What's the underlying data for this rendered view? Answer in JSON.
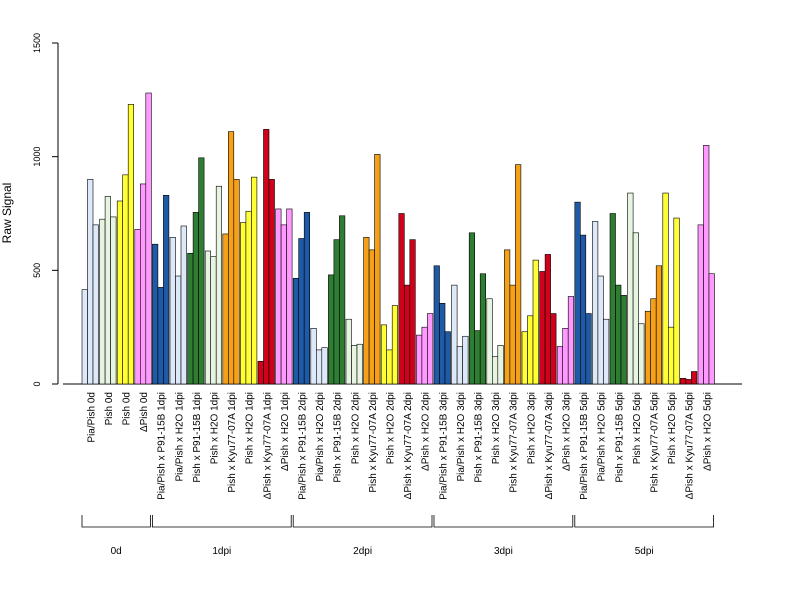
{
  "chart_data": {
    "type": "bar",
    "title": "",
    "xlabel": "",
    "ylabel": "Raw Signal",
    "ylim": [
      0,
      1500
    ],
    "yticks": [
      0,
      500,
      1000,
      1500
    ],
    "grid": false,
    "categories": [
      "Pia/Pish 0d",
      "Pish 0d",
      "Pish 0d",
      "ΔPish 0d",
      "Pia/Pish x P91-15B 1dpi",
      "Pia/Pish x H2O 1dpi",
      "Pish x P91-15B 1dpi",
      "Pish x H2O 1dpi",
      "Pish x Kyu77-07A 1dpi",
      "Pish x H2O 1dpi",
      "ΔPish x Kyu77-07A 1dpi",
      "ΔPish x H2O 1dpi",
      "Pia/Pish x P91-15B 2dpi",
      "Pia/Pish x H2O 2dpi",
      "Pish x P91-15B 2dpi",
      "Pish x H2O 2dpi",
      "Pish x Kyu77-07A 2dpi",
      "Pish x H2O 2dpi",
      "ΔPish x Kyu77-07A 2dpi",
      "ΔPish x H2O 2dpi",
      "Pia/Pish x P91-15B 3dpi",
      "Pia/Pish x H2O 3dpi",
      "Pish x P91-15B 3dpi",
      "Pish x H2O 3dpi",
      "Pish x Kyu77-07A 3dpi",
      "Pish x H2O 3dpi",
      "ΔPish x Kyu77-07A 3dpi",
      "ΔPish x H2O 3dpi",
      "Pia/Pish x P91-15B 5dpi",
      "Pia/Pish x H2O 5dpi",
      "Pish x P91-15B 5dpi",
      "Pish x H2O 5dpi",
      "Pish x Kyu77-07A 5dpi",
      "Pish x H2O 5dpi",
      "ΔPish x Kyu77-07A 5dpi",
      "ΔPish x H2O 5dpi"
    ],
    "groups": [
      {
        "label": "0d",
        "start": 0,
        "end": 3
      },
      {
        "label": "1dpi",
        "start": 4,
        "end": 11
      },
      {
        "label": "2dpi",
        "start": 12,
        "end": 19
      },
      {
        "label": "3dpi",
        "start": 20,
        "end": 27
      },
      {
        "label": "5dpi",
        "start": 28,
        "end": 35
      }
    ],
    "series_colors": [
      "#dde9f8",
      "#1f5aa6",
      "#2e7d32",
      "#e6f4e1",
      "#f5a019",
      "#ffff33",
      "#d0021b",
      "#ff99ff"
    ],
    "bars": [
      {
        "color": "#dde9f8",
        "values": [
          415,
          900,
          700
        ]
      },
      {
        "color": "#e6f4e1",
        "values": [
          725,
          825,
          735
        ]
      },
      {
        "color": "#ffff33",
        "values": [
          805,
          920,
          1230
        ]
      },
      {
        "color": "#ff99ff",
        "values": [
          680,
          880,
          1280
        ]
      },
      {
        "color": "#1f5aa6",
        "values": [
          615,
          425,
          830
        ]
      },
      {
        "color": "#dde9f8",
        "values": [
          645,
          475,
          695
        ]
      },
      {
        "color": "#2e7d32",
        "values": [
          575,
          755,
          995
        ]
      },
      {
        "color": "#e6f4e1",
        "values": [
          585,
          560,
          870
        ]
      },
      {
        "color": "#f5a019",
        "values": [
          660,
          1110,
          900
        ]
      },
      {
        "color": "#ffff33",
        "values": [
          710,
          760,
          910
        ]
      },
      {
        "color": "#d0021b",
        "values": [
          100,
          1120,
          900
        ]
      },
      {
        "color": "#ff99ff",
        "values": [
          770,
          700,
          770
        ]
      },
      {
        "color": "#1f5aa6",
        "values": [
          465,
          640,
          755
        ]
      },
      {
        "color": "#dde9f8",
        "values": [
          245,
          150,
          160
        ]
      },
      {
        "color": "#2e7d32",
        "values": [
          480,
          635,
          740
        ]
      },
      {
        "color": "#e6f4e1",
        "values": [
          285,
          170,
          175
        ]
      },
      {
        "color": "#f5a019",
        "values": [
          645,
          590,
          1010
        ]
      },
      {
        "color": "#ffff33",
        "values": [
          260,
          150,
          345
        ]
      },
      {
        "color": "#d0021b",
        "values": [
          750,
          435,
          635
        ]
      },
      {
        "color": "#ff99ff",
        "values": [
          215,
          250,
          310
        ]
      },
      {
        "color": "#1f5aa6",
        "values": [
          520,
          355,
          230
        ]
      },
      {
        "color": "#dde9f8",
        "values": [
          435,
          165,
          210
        ]
      },
      {
        "color": "#2e7d32",
        "values": [
          665,
          235,
          485
        ]
      },
      {
        "color": "#e6f4e1",
        "values": [
          375,
          120,
          170
        ]
      },
      {
        "color": "#f5a019",
        "values": [
          590,
          435,
          965
        ]
      },
      {
        "color": "#ffff33",
        "values": [
          230,
          300,
          545
        ]
      },
      {
        "color": "#d0021b",
        "values": [
          495,
          570,
          310
        ]
      },
      {
        "color": "#ff99ff",
        "values": [
          165,
          245,
          385
        ]
      },
      {
        "color": "#1f5aa6",
        "values": [
          800,
          655,
          310
        ]
      },
      {
        "color": "#dde9f8",
        "values": [
          715,
          475,
          285
        ]
      },
      {
        "color": "#2e7d32",
        "values": [
          750,
          435,
          390
        ]
      },
      {
        "color": "#e6f4e1",
        "values": [
          840,
          665,
          265
        ]
      },
      {
        "color": "#f5a019",
        "values": [
          320,
          375,
          520
        ]
      },
      {
        "color": "#ffff33",
        "values": [
          840,
          250,
          730
        ]
      },
      {
        "color": "#d0021b",
        "values": [
          25,
          20,
          55
        ]
      },
      {
        "color": "#ff99ff",
        "values": [
          700,
          1050,
          485
        ]
      }
    ]
  }
}
